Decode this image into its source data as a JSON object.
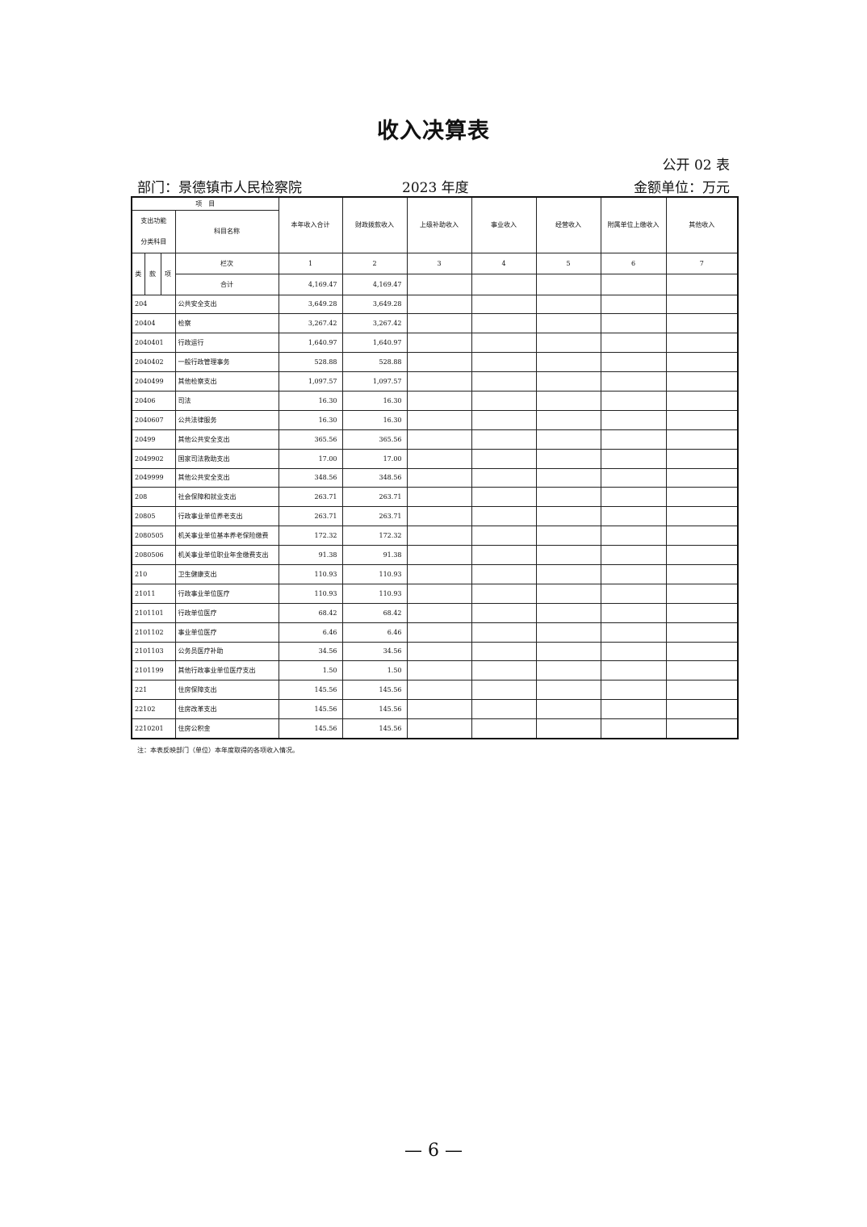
{
  "title": "收入决算表",
  "table_no": "公开 02 表",
  "department": "部门：景德镇市人民检察院",
  "year": "2023 年度",
  "unit": "金额单位：万元",
  "header": {
    "item": "项　目",
    "category_l1": "支出功能",
    "category_l2": "分类科目",
    "subject_name": "科目名称",
    "lei": "类",
    "kuan": "款",
    "xiang": "项",
    "column_label": "栏次",
    "columns": [
      "本年收入合计",
      "财政拨款收入",
      "上级补助收入",
      "事业收入",
      "经营收入",
      "附属单位上缴收入",
      "其他收入"
    ],
    "column_numbers": [
      "1",
      "2",
      "3",
      "4",
      "5",
      "6",
      "7"
    ]
  },
  "total": {
    "label": "合计",
    "values": [
      "4,169.47",
      "4,169.47",
      "",
      "",
      "",
      "",
      ""
    ]
  },
  "rows": [
    {
      "code": "204",
      "name": "公共安全支出",
      "total": "3,649.28",
      "fiscal": "3,649.28"
    },
    {
      "code": "20404",
      "name": "检察",
      "total": "3,267.42",
      "fiscal": "3,267.42"
    },
    {
      "code": "2040401",
      "name": "行政运行",
      "total": "1,640.97",
      "fiscal": "1,640.97"
    },
    {
      "code": "2040402",
      "name": "一般行政管理事务",
      "total": "528.88",
      "fiscal": "528.88"
    },
    {
      "code": "2040499",
      "name": "其他检察支出",
      "total": "1,097.57",
      "fiscal": "1,097.57"
    },
    {
      "code": "20406",
      "name": "司法",
      "total": "16.30",
      "fiscal": "16.30"
    },
    {
      "code": "2040607",
      "name": "公共法律服务",
      "total": "16.30",
      "fiscal": "16.30"
    },
    {
      "code": "20499",
      "name": "其他公共安全支出",
      "total": "365.56",
      "fiscal": "365.56"
    },
    {
      "code": "2049902",
      "name": "国家司法救助支出",
      "total": "17.00",
      "fiscal": "17.00"
    },
    {
      "code": "2049999",
      "name": "其他公共安全支出",
      "total": "348.56",
      "fiscal": "348.56"
    },
    {
      "code": "208",
      "name": "社会保障和就业支出",
      "total": "263.71",
      "fiscal": "263.71"
    },
    {
      "code": "20805",
      "name": "行政事业单位养老支出",
      "total": "263.71",
      "fiscal": "263.71"
    },
    {
      "code": "2080505",
      "name": "机关事业单位基本养老保险缴费",
      "total": "172.32",
      "fiscal": "172.32"
    },
    {
      "code": "2080506",
      "name": "机关事业单位职业年金缴费支出",
      "total": "91.38",
      "fiscal": "91.38"
    },
    {
      "code": "210",
      "name": "卫生健康支出",
      "total": "110.93",
      "fiscal": "110.93"
    },
    {
      "code": "21011",
      "name": "行政事业单位医疗",
      "total": "110.93",
      "fiscal": "110.93"
    },
    {
      "code": "2101101",
      "name": "行政单位医疗",
      "total": "68.42",
      "fiscal": "68.42"
    },
    {
      "code": "2101102",
      "name": "事业单位医疗",
      "total": "6.46",
      "fiscal": "6.46"
    },
    {
      "code": "2101103",
      "name": "公务员医疗补助",
      "total": "34.56",
      "fiscal": "34.56"
    },
    {
      "code": "2101199",
      "name": "其他行政事业单位医疗支出",
      "total": "1.50",
      "fiscal": "1.50"
    },
    {
      "code": "221",
      "name": "住房保障支出",
      "total": "145.56",
      "fiscal": "145.56"
    },
    {
      "code": "22102",
      "name": "住房改革支出",
      "total": "145.56",
      "fiscal": "145.56"
    },
    {
      "code": "2210201",
      "name": "住房公积金",
      "total": "145.56",
      "fiscal": "145.56"
    }
  ],
  "note": "注：本表反映部门（单位）本年度取得的各项收入情况。",
  "page_number": "— 6 —"
}
